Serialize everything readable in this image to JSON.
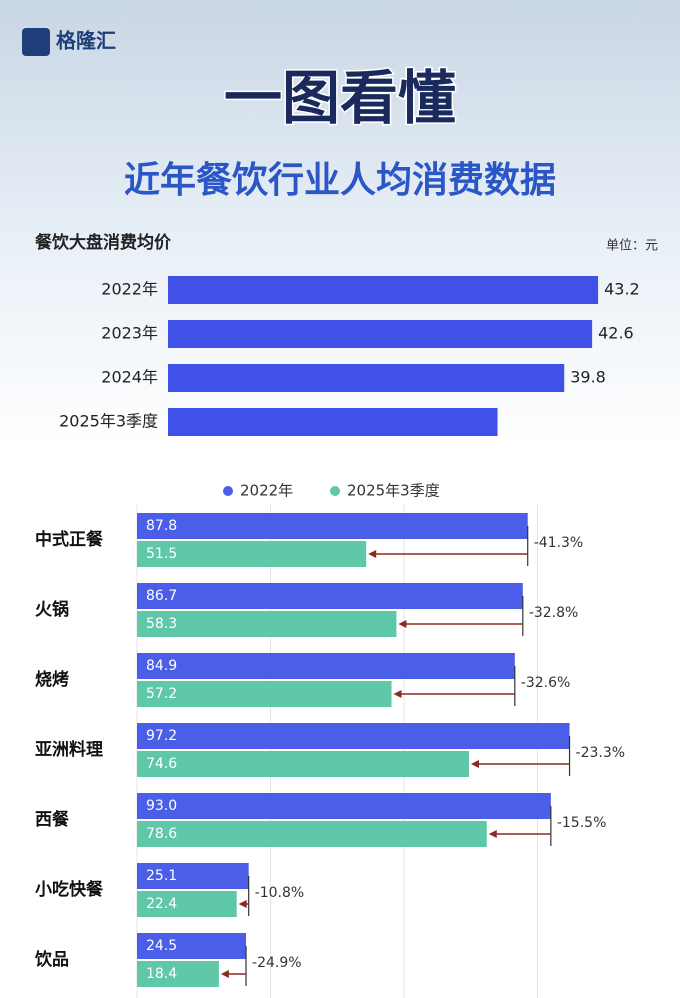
{
  "header": {
    "logo": "格隆汇",
    "title": "一图看懂",
    "subtitle": "近年餐饮行业人均消费数据"
  },
  "chart_data": [
    {
      "type": "bar",
      "orientation": "horizontal",
      "title": "餐饮大盘消费均价",
      "unit": "单位：元",
      "categories": [
        "2022年",
        "2023年",
        "2024年",
        "2025年3季度"
      ],
      "values": [
        43.2,
        42.6,
        39.8,
        33.1
      ],
      "value_labels": [
        "43.2",
        "42.6",
        "39.8",
        null
      ],
      "color": "#3f51e6",
      "xlim": [
        0,
        45
      ]
    },
    {
      "type": "grouped_bar",
      "orientation": "horizontal",
      "categories": [
        "中式正餐",
        "火锅",
        "烧烤",
        "亚洲料理",
        "西餐",
        "小吃快餐",
        "饮品"
      ],
      "series": [
        {
          "name": "2022年",
          "color": "#4a5ee8",
          "values": [
            87.8,
            86.7,
            84.9,
            97.2,
            93.0,
            25.1,
            24.5
          ],
          "value_labels": [
            "87.8",
            "86.7",
            "84.9",
            "97.2",
            "93.0",
            "25.1",
            "24.5"
          ]
        },
        {
          "name": "2025年3季度",
          "color": "#5ec8a8",
          "values": [
            51.5,
            58.3,
            57.2,
            74.6,
            78.6,
            22.4,
            18.4
          ],
          "value_labels": [
            "51.5",
            "58.3",
            "57.2",
            "74.6",
            "78.6",
            "22.4",
            "18.4"
          ]
        }
      ],
      "changes": [
        "-41.3%",
        "-32.8%",
        "-32.6%",
        "-23.3%",
        "-15.5%",
        "-10.8%",
        "-24.9%"
      ],
      "xlim": [
        0,
        100
      ],
      "xticks": [
        0,
        30,
        60,
        90
      ],
      "grid": true
    }
  ]
}
